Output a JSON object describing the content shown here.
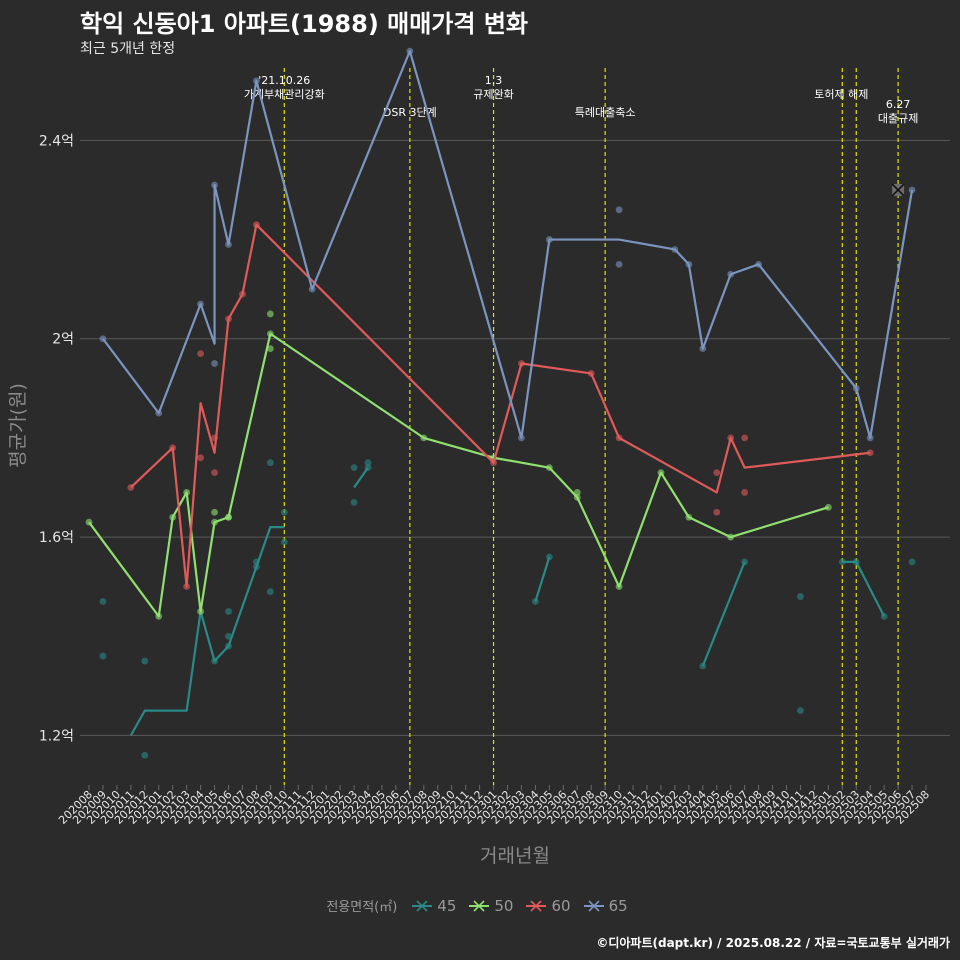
{
  "title": "학익 신동아1 아파트(1988) 매매가격 변화",
  "subtitle": "최근 5개년 한정",
  "caption": "©디아파트(dapt.kr) / 2025.08.22 / 자료=국토교통부 실거래가",
  "chart_data": {
    "type": "line",
    "xlabel": "거래년월",
    "ylabel": "평균가(원)",
    "ylim": [
      1.1,
      2.55
    ],
    "y_ticks": [
      {
        "value": 1.2,
        "label": "1.2억"
      },
      {
        "value": 1.6,
        "label": "1.6억"
      },
      {
        "value": 2.0,
        "label": "2억"
      },
      {
        "value": 2.4,
        "label": "2.4억"
      }
    ],
    "x_start": "2020-08",
    "x_end": "2025-08",
    "x_ticks": [
      "202008",
      "202009",
      "202010",
      "202011",
      "202012",
      "202101",
      "202102",
      "202103",
      "202104",
      "202105",
      "202106",
      "202107",
      "202108",
      "202109",
      "202110",
      "202111",
      "202112",
      "202201",
      "202202",
      "202203",
      "202204",
      "202205",
      "202206",
      "202207",
      "202208",
      "202209",
      "202210",
      "202211",
      "202212",
      "202301",
      "202302",
      "202303",
      "202304",
      "202305",
      "202306",
      "202307",
      "202308",
      "202309",
      "202310",
      "202311",
      "202312",
      "202401",
      "202402",
      "202403",
      "202404",
      "202405",
      "202406",
      "202407",
      "202408",
      "202409",
      "202410",
      "202411",
      "202412",
      "202501",
      "202502",
      "202503",
      "202504",
      "202505",
      "202506",
      "202507",
      "202508"
    ],
    "grid": true,
    "legend": {
      "title": "전용면적(㎡)",
      "placement": "bottom"
    },
    "events": [
      {
        "date": "2021-10",
        "label": "'21.10.26\n가계부채관리강화"
      },
      {
        "date": "2022-07",
        "label": "DSR 3단계"
      },
      {
        "date": "2023-01",
        "label": "1.3\n규제완화"
      },
      {
        "date": "2023-09",
        "label": "특례대출축소"
      },
      {
        "date": "2025-02",
        "label": "토허제 해제"
      },
      {
        "date": "2025-03",
        "label": ""
      },
      {
        "date": "2025-06",
        "label": "6.27\n대출규제"
      }
    ],
    "series": [
      {
        "name": "45",
        "color": "#2a8a87",
        "line": [
          [
            "2020-11",
            1.2
          ],
          [
            "2020-12",
            1.25
          ],
          [
            "2021-03",
            1.25
          ],
          [
            "2021-04",
            1.45
          ],
          [
            "2021-05",
            1.35
          ],
          [
            "2021-06",
            1.38
          ],
          [
            "2021-09",
            1.62
          ],
          [
            "2021-10",
            1.62
          ]
        ],
        "line_segments": [
          [
            [
              "2022-03",
              1.7
            ],
            [
              "2022-04",
              1.74
            ]
          ],
          [
            [
              "2023-04",
              1.47
            ],
            [
              "2023-05",
              1.56
            ]
          ],
          [
            [
              "2024-04",
              1.34
            ],
            [
              "2024-07",
              1.55
            ]
          ],
          [
            [
              "2025-02",
              1.55
            ],
            [
              "2025-03",
              1.55
            ],
            [
              "2025-05",
              1.44
            ]
          ]
        ],
        "points": [
          [
            "2020-09",
            1.47
          ],
          [
            "2020-09",
            1.36
          ],
          [
            "2020-12",
            1.35
          ],
          [
            "2020-12",
            1.16
          ],
          [
            "2021-05",
            1.35
          ],
          [
            "2021-06",
            1.38
          ],
          [
            "2021-06",
            1.45
          ],
          [
            "2021-06",
            1.4
          ],
          [
            "2021-08",
            1.55
          ],
          [
            "2021-08",
            1.54
          ],
          [
            "2021-09",
            1.49
          ],
          [
            "2021-09",
            1.75
          ],
          [
            "2021-10",
            1.59
          ],
          [
            "2021-10",
            1.65
          ],
          [
            "2022-03",
            1.74
          ],
          [
            "2022-03",
            1.67
          ],
          [
            "2022-04",
            1.74
          ],
          [
            "2022-04",
            1.75
          ],
          [
            "2023-04",
            1.47
          ],
          [
            "2023-05",
            1.56
          ],
          [
            "2024-04",
            1.34
          ],
          [
            "2024-07",
            1.55
          ],
          [
            "2024-11",
            1.48
          ],
          [
            "2024-11",
            1.25
          ],
          [
            "2025-02",
            1.55
          ],
          [
            "2025-03",
            1.55
          ],
          [
            "2025-05",
            1.44
          ],
          [
            "2025-07",
            1.55
          ]
        ],
        "cross": []
      },
      {
        "name": "50",
        "color": "#90e070",
        "line": [
          [
            "2020-08",
            1.63
          ],
          [
            "2021-01",
            1.44
          ],
          [
            "2021-02",
            1.64
          ],
          [
            "2021-03",
            1.69
          ],
          [
            "2021-04",
            1.45
          ],
          [
            "2021-05",
            1.63
          ],
          [
            "2021-06",
            1.64
          ],
          [
            "2021-09",
            2.01
          ],
          [
            "2022-08",
            1.8
          ],
          [
            "2023-01",
            1.76
          ],
          [
            "2023-05",
            1.74
          ],
          [
            "2023-07",
            1.68
          ],
          [
            "2023-10",
            1.5
          ],
          [
            "2024-01",
            1.73
          ],
          [
            "2024-03",
            1.64
          ],
          [
            "2024-06",
            1.6
          ],
          [
            "2025-01",
            1.66
          ]
        ],
        "line_segments": [],
        "points": [
          [
            "2020-08",
            1.63
          ],
          [
            "2021-01",
            1.44
          ],
          [
            "2021-02",
            1.64
          ],
          [
            "2021-03",
            1.69
          ],
          [
            "2021-04",
            1.45
          ],
          [
            "2021-05",
            1.63
          ],
          [
            "2021-05",
            1.65
          ],
          [
            "2021-06",
            1.64
          ],
          [
            "2021-06",
            1.64
          ],
          [
            "2021-09",
            2.01
          ],
          [
            "2021-09",
            2.05
          ],
          [
            "2021-09",
            1.98
          ],
          [
            "2022-08",
            1.8
          ],
          [
            "2023-01",
            1.76
          ],
          [
            "2023-05",
            1.74
          ],
          [
            "2023-07",
            1.68
          ],
          [
            "2023-07",
            1.69
          ],
          [
            "2023-10",
            1.5
          ],
          [
            "2024-01",
            1.73
          ],
          [
            "2024-03",
            1.64
          ],
          [
            "2024-06",
            1.6
          ],
          [
            "2025-01",
            1.66
          ]
        ],
        "cross": []
      },
      {
        "name": "60",
        "color": "#e05a5a",
        "line": [
          [
            "2020-11",
            1.7
          ],
          [
            "2021-02",
            1.78
          ],
          [
            "2021-03",
            1.5
          ],
          [
            "2021-04",
            1.87
          ],
          [
            "2021-05",
            1.77
          ],
          [
            "2021-06",
            2.04
          ],
          [
            "2021-07",
            2.09
          ],
          [
            "2021-08",
            2.23
          ],
          [
            "2023-01",
            1.75
          ],
          [
            "2023-03",
            1.95
          ],
          [
            "2023-08",
            1.93
          ],
          [
            "2023-10",
            1.8
          ],
          [
            "2024-05",
            1.69
          ],
          [
            "2024-06",
            1.8
          ],
          [
            "2024-07",
            1.74
          ],
          [
            "2025-04",
            1.77
          ]
        ],
        "line_segments": [],
        "points": [
          [
            "2020-11",
            1.7
          ],
          [
            "2021-02",
            1.78
          ],
          [
            "2021-03",
            1.5
          ],
          [
            "2021-04",
            1.76
          ],
          [
            "2021-04",
            1.97
          ],
          [
            "2021-05",
            1.8
          ],
          [
            "2021-05",
            1.73
          ],
          [
            "2021-06",
            2.04
          ],
          [
            "2021-07",
            2.09
          ],
          [
            "2021-08",
            2.23
          ],
          [
            "2023-01",
            1.75
          ],
          [
            "2023-03",
            1.95
          ],
          [
            "2023-08",
            1.93
          ],
          [
            "2023-10",
            1.8
          ],
          [
            "2024-05",
            1.73
          ],
          [
            "2024-05",
            1.65
          ],
          [
            "2024-06",
            1.8
          ],
          [
            "2024-07",
            1.8
          ],
          [
            "2024-07",
            1.69
          ],
          [
            "2025-04",
            1.77
          ]
        ],
        "cross": []
      },
      {
        "name": "65",
        "color": "#7b95c0",
        "line": [
          [
            "2020-09",
            2.0
          ],
          [
            "2021-01",
            1.85
          ],
          [
            "2021-04",
            2.07
          ],
          [
            "2021-05",
            1.99
          ],
          [
            "2021-05",
            2.31
          ],
          [
            "2021-06",
            2.19
          ],
          [
            "2021-08",
            2.52
          ],
          [
            "2021-12",
            2.1
          ],
          [
            "2022-07",
            2.58
          ],
          [
            "2023-03",
            1.8
          ],
          [
            "2023-05",
            2.2
          ],
          [
            "2023-10",
            2.2
          ],
          [
            "2024-02",
            2.18
          ],
          [
            "2024-03",
            2.15
          ],
          [
            "2024-04",
            1.98
          ],
          [
            "2024-06",
            2.13
          ],
          [
            "2024-08",
            2.15
          ],
          [
            "2025-03",
            1.9
          ],
          [
            "2025-04",
            1.8
          ],
          [
            "2025-07",
            2.3
          ]
        ],
        "line_segments": [],
        "points": [
          [
            "2020-09",
            2.0
          ],
          [
            "2021-01",
            1.85
          ],
          [
            "2021-04",
            2.07
          ],
          [
            "2021-05",
            1.95
          ],
          [
            "2021-05",
            2.31
          ],
          [
            "2021-06",
            2.19
          ],
          [
            "2021-08",
            2.52
          ],
          [
            "2021-12",
            2.1
          ],
          [
            "2022-07",
            2.58
          ],
          [
            "2023-03",
            1.8
          ],
          [
            "2023-05",
            2.2
          ],
          [
            "2023-10",
            2.26
          ],
          [
            "2023-10",
            2.15
          ],
          [
            "2024-02",
            2.18
          ],
          [
            "2024-03",
            2.15
          ],
          [
            "2024-04",
            1.98
          ],
          [
            "2024-06",
            2.13
          ],
          [
            "2024-08",
            2.15
          ],
          [
            "2025-03",
            1.9
          ],
          [
            "2025-04",
            1.8
          ],
          [
            "2025-07",
            2.3
          ]
        ],
        "cross": [
          [
            "2025-06",
            2.3
          ]
        ]
      }
    ]
  }
}
